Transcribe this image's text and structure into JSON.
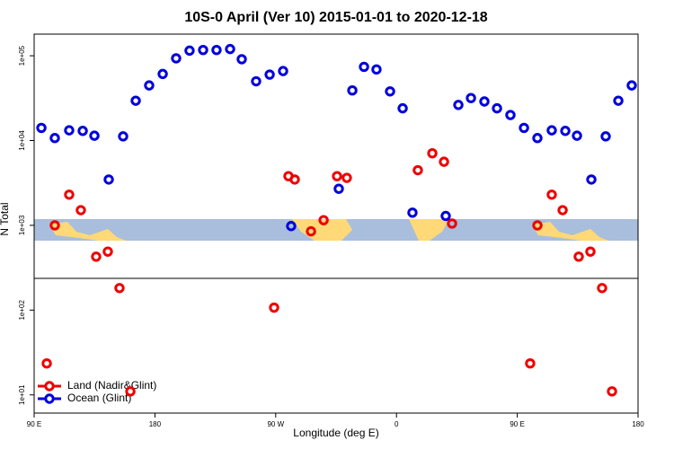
{
  "chart_data": {
    "type": "scatter",
    "title": "10S-0 April (Ver 10)   2015-01-01 to 2020-12-18",
    "x_label": "Longitude (deg E)",
    "y_label": "N Total",
    "log_y": true,
    "legend": "bottomleft",
    "xlim": [
      90,
      540
    ],
    "xticks": [
      {
        "value": 90,
        "label": "90 E"
      },
      {
        "value": 180,
        "label": "180"
      },
      {
        "value": 270,
        "label": "90 W"
      },
      {
        "value": 360,
        "label": "0"
      },
      {
        "value": 450,
        "label": "90 E"
      },
      {
        "value": 540,
        "label": "180"
      }
    ],
    "ylim": [
      6.1,
      180000
    ],
    "yticks": [
      {
        "value": 10,
        "label": "1e+01"
      },
      {
        "value": 100,
        "label": "1e+02"
      },
      {
        "value": 1000,
        "label": "1e+03"
      },
      {
        "value": 10000,
        "label": "1e+04"
      },
      {
        "value": 100000,
        "label": "1e+05"
      }
    ],
    "series": [
      {
        "name": "Land (Nadir&Glint)",
        "color": "#ee0000",
        "x": [
          99.4,
          105.4,
          116.1,
          124.8,
          136.2,
          144.9,
          153.6,
          161.7,
          268.8,
          279.5,
          284.2,
          296.3,
          305.7,
          315.7,
          323.0,
          375.9,
          386.7,
          395.4,
          401.4,
          459.6,
          465.0,
          475.7,
          483.8,
          495.8,
          504.5,
          513.2,
          520.6
        ],
        "values": [
          23.5,
          1000,
          2300,
          1510,
          427,
          490,
          182,
          11,
          107,
          3800,
          3470,
          850,
          1150,
          3800,
          3630,
          4470,
          7080,
          5620,
          1050,
          23.5,
          1000,
          2300,
          1510,
          427,
          490,
          182,
          11
        ]
      },
      {
        "name": "Ocean (Glint)",
        "color": "#0000dd",
        "x": [
          95.4,
          105.4,
          116.1,
          126.2,
          134.9,
          145.6,
          156.3,
          165.7,
          175.7,
          185.8,
          195.8,
          205.8,
          215.9,
          225.9,
          236.0,
          244.7,
          255.4,
          265.5,
          275.5,
          281.5,
          317.0,
          327.1,
          335.8,
          345.1,
          355.2,
          364.6,
          371.9,
          396.7,
          406.1,
          415.5,
          425.5,
          434.9,
          444.9,
          455.0,
          465.0,
          475.7,
          485.8,
          494.5,
          505.2,
          515.9,
          525.3,
          535.3
        ],
        "values": [
          14100,
          10700,
          13200,
          13000,
          11400,
          3470,
          11200,
          29500,
          44700,
          61000,
          93300,
          115000,
          117000,
          117000,
          120000,
          91000,
          50000,
          60000,
          66000,
          980,
          2700,
          39000,
          74000,
          69000,
          38000,
          24000,
          1410,
          1290,
          26300,
          31700,
          28900,
          24000,
          20000,
          14100,
          10700,
          13200,
          13000,
          11400,
          3470,
          11200,
          29500,
          44700
        ]
      }
    ]
  }
}
